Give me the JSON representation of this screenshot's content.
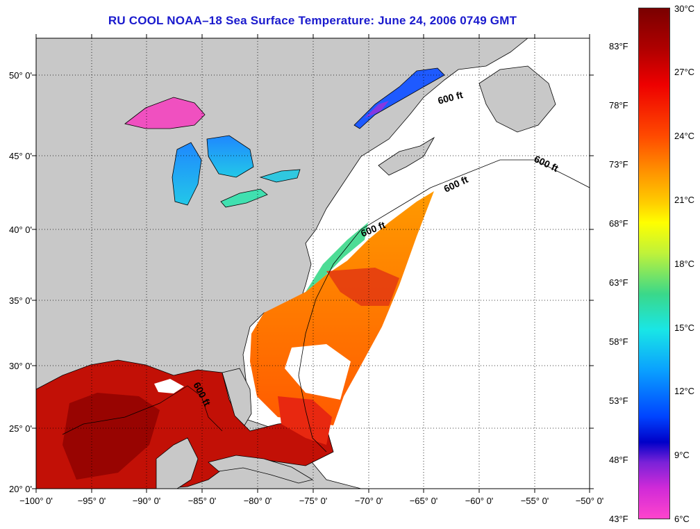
{
  "title": "RU COOL  NOAA–18  Sea Surface Temperature:  June 24, 2006 0749 GMT",
  "x_axis_labels": [
    "−100° 0'",
    "−95° 0'",
    "−90° 0'",
    "−85° 0'",
    "−80° 0'",
    "−75° 0'",
    "−70° 0'",
    "−65° 0'",
    "−60° 0'",
    "−55° 0'",
    "−50° 0'"
  ],
  "y_axis_labels": [
    "50° 0'",
    "45° 0'",
    "40° 0'",
    "35° 0'",
    "30° 0'",
    "25° 0'",
    "20° 0'"
  ],
  "contour_labels": [
    "600 ft",
    "600 ft",
    "600 ft",
    "600 ft",
    "600 ft"
  ],
  "colorbar": {
    "fahrenheit": [
      "83°F",
      "78°F",
      "73°F",
      "68°F",
      "63°F",
      "58°F",
      "53°F",
      "48°F",
      "43°F"
    ],
    "celsius": [
      "30°C",
      "27°C",
      "24°C",
      "21°C",
      "18°C",
      "15°C",
      "12°C",
      "9°C",
      "6°C"
    ]
  },
  "colors": {
    "title": "#1a1acd",
    "land": "#c8c8c8",
    "no_data": "#ffffff"
  }
}
